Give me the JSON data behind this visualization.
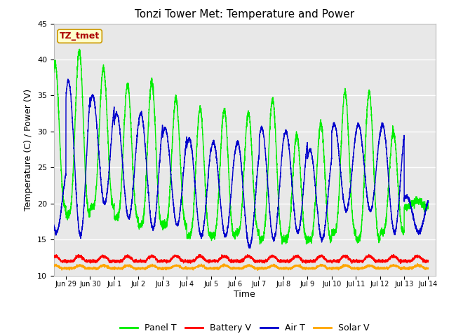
{
  "title": "Tonzi Tower Met: Temperature and Power",
  "xlabel": "Time",
  "ylabel": "Temperature (C) / Power (V)",
  "ylim": [
    10,
    45
  ],
  "yticks": [
    10,
    15,
    20,
    25,
    30,
    35,
    40,
    45
  ],
  "colors": {
    "panel_t": "#00EE00",
    "battery_v": "#FF0000",
    "air_t": "#0000CC",
    "solar_v": "#FFA500"
  },
  "legend_labels": [
    "Panel T",
    "Battery V",
    "Air T",
    "Solar V"
  ],
  "annotation_text": "TZ_tmet",
  "annotation_bg": "#FFFFCC",
  "annotation_fg": "#AA0000",
  "background_color": "#E8E8E8",
  "grid_color": "#FFFFFF",
  "title_fontsize": 11,
  "axis_fontsize": 9,
  "tick_fontsize": 8,
  "legend_fontsize": 9,
  "n_days": 16,
  "ppd": 288,
  "panel_peaks": [
    39.5,
    41.2,
    38.8,
    36.5,
    37.0,
    34.5,
    33.2,
    33.0,
    32.5,
    34.5,
    29.5,
    31.0,
    35.5,
    35.5,
    30.0,
    20.5
  ],
  "panel_mins": [
    19.5,
    18.5,
    19.5,
    18.0,
    17.0,
    17.0,
    15.5,
    15.5,
    16.0,
    15.0,
    15.0,
    15.0,
    16.0,
    15.0,
    16.0,
    19.5
  ],
  "air_peaks": [
    25.0,
    37.0,
    35.0,
    32.5,
    32.5,
    30.5,
    29.0,
    28.5,
    28.5,
    30.5,
    30.0,
    27.5,
    31.0,
    31.0,
    31.0,
    21.0
  ],
  "air_mins": [
    16.0,
    15.5,
    20.0,
    18.0,
    16.5,
    17.0,
    15.5,
    15.5,
    14.0,
    15.0,
    16.0,
    15.0,
    19.0,
    19.0,
    16.0,
    16.0
  ],
  "bv_base": 12.0,
  "bv_amp": 0.7,
  "sv_base": 11.0,
  "sv_amp": 0.4,
  "tick_positions": [
    1,
    2,
    3,
    4,
    5,
    6,
    7,
    8,
    9,
    10,
    11,
    12,
    13,
    14,
    15,
    16
  ],
  "tick_labels": [
    "Jun 29",
    "Jun 30",
    "Jul 1",
    "Jul 2",
    "Jul 3",
    "Jul 4",
    "Jul 5",
    "Jul 6",
    "Jul 7",
    "Jul 8",
    "Jul 9",
    "Jul 10",
    "Jul 11",
    "Jul 12",
    "Jul 13",
    "Jul 14"
  ],
  "xlim": [
    0.5,
    16.3
  ]
}
